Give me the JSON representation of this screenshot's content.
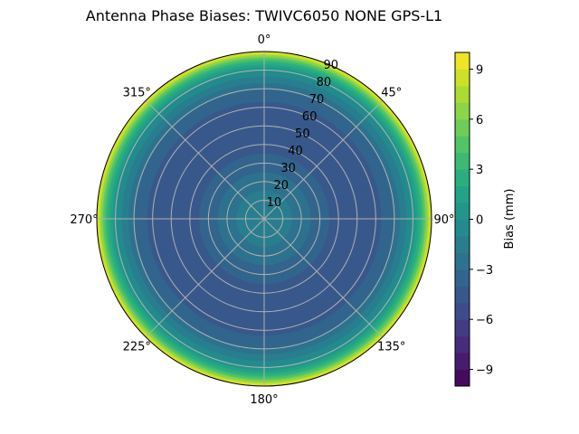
{
  "chart_data": {
    "type": "heatmap",
    "subtype": "polar-contour",
    "title": "Antenna Phase Biases: TWIVC6050        NONE GPS-L1",
    "azimuth_ticks": [
      "0°",
      "45°",
      "90°",
      "135°",
      "180°",
      "225°",
      "270°",
      "315°"
    ],
    "zenith_ticks": [
      "10",
      "20",
      "30",
      "40",
      "50",
      "60",
      "70",
      "80",
      "90"
    ],
    "zenith_range": [
      0,
      90
    ],
    "azimuth_direction": "clockwise, 0° at top",
    "grid": true,
    "colorbar": {
      "label": "Bias (mm)",
      "range": [
        -10,
        10
      ],
      "levels_step": 1,
      "ticks": [
        "−9",
        "−6",
        "−3",
        "0",
        "3",
        "6",
        "9"
      ],
      "tick_values": [
        -9,
        -6,
        -3,
        0,
        3,
        6,
        9
      ],
      "colormap": "viridis",
      "placement": "right"
    },
    "radial_profile": {
      "zenith": [
        0,
        10,
        20,
        30,
        40,
        50,
        60,
        70,
        80,
        85,
        90
      ],
      "bias_mm": [
        -1,
        -1.5,
        -2.5,
        -3.5,
        -4.5,
        -5,
        -4.5,
        -3,
        0,
        3,
        9.5
      ]
    }
  }
}
